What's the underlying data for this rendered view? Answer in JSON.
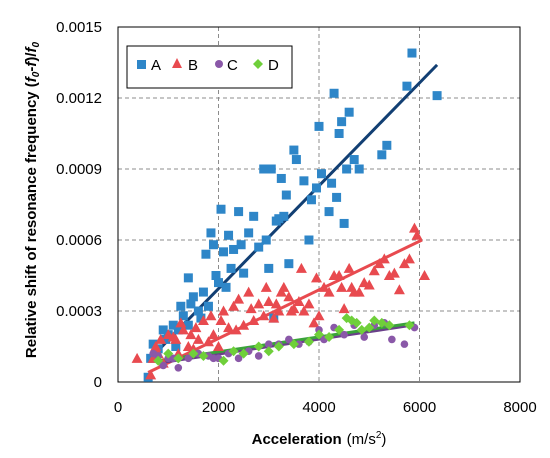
{
  "chart_data": {
    "type": "scatter",
    "xlabel_bold": "Acceleration",
    "xlabel_unit_prefix": "(m/s",
    "xlabel_unit_sup": "2",
    "xlabel_unit_suffix": ")",
    "ylabel_prefix": "Relative shift of resonance frequency (",
    "ylabel_f0a": "f",
    "ylabel_sub0a": "0",
    "ylabel_mid": "-",
    "ylabel_f": "f",
    "ylabel_slash": ")/",
    "ylabel_f0b": "f",
    "ylabel_sub0b": "0",
    "xlim": [
      0,
      8000
    ],
    "ylim": [
      0,
      0.0015
    ],
    "x_ticks": [
      "0",
      "2000",
      "4000",
      "6000",
      "8000"
    ],
    "y_ticks": [
      "0",
      "0.0003",
      "0.0006",
      "0.0009",
      "0.0012",
      "0.0015"
    ],
    "x_tick_values": [
      0,
      2000,
      4000,
      6000,
      8000
    ],
    "y_tick_values": [
      0,
      0.0003,
      0.0006,
      0.0009,
      0.0012,
      0.0015
    ],
    "grid": true,
    "legend_position": "top-left",
    "series": [
      {
        "name": "A",
        "marker": "square",
        "color": "#2e86c8",
        "fit": {
          "x": [
            600,
            6350
          ],
          "y": [
            9e-05,
            0.00134
          ],
          "color": "#123f73"
        },
        "points": [
          [
            600,
            2e-05
          ],
          [
            650,
            0.0001
          ],
          [
            700,
            0.00016
          ],
          [
            800,
            0.00014
          ],
          [
            900,
            0.00022
          ],
          [
            950,
            0.00018
          ],
          [
            1000,
            0.0002
          ],
          [
            1100,
            0.00024
          ],
          [
            1150,
            0.00015
          ],
          [
            1200,
            0.00022
          ],
          [
            1250,
            0.00032
          ],
          [
            1300,
            0.00028
          ],
          [
            1400,
            0.00044
          ],
          [
            1400,
            0.00024
          ],
          [
            1450,
            0.00033
          ],
          [
            1500,
            0.00036
          ],
          [
            1600,
            0.0003
          ],
          [
            1650,
            0.00027
          ],
          [
            1700,
            0.00038
          ],
          [
            1750,
            0.00054
          ],
          [
            1800,
            0.00032
          ],
          [
            1850,
            0.00063
          ],
          [
            1900,
            0.00058
          ],
          [
            1950,
            0.00045
          ],
          [
            2000,
            0.00042
          ],
          [
            2050,
            0.00073
          ],
          [
            2100,
            0.00055
          ],
          [
            2150,
            0.0004
          ],
          [
            2200,
            0.00062
          ],
          [
            2250,
            0.00048
          ],
          [
            2300,
            0.00056
          ],
          [
            2400,
            0.00072
          ],
          [
            2450,
            0.00058
          ],
          [
            2500,
            0.00046
          ],
          [
            2600,
            0.00063
          ],
          [
            2700,
            0.0007
          ],
          [
            2800,
            0.00057
          ],
          [
            2900,
            0.0009
          ],
          [
            2950,
            0.0006
          ],
          [
            3000,
            0.00048
          ],
          [
            3050,
            0.0009
          ],
          [
            3100,
            0.00027
          ],
          [
            3150,
            0.00068
          ],
          [
            3200,
            0.00069
          ],
          [
            3250,
            0.00086
          ],
          [
            3300,
            0.0007
          ],
          [
            3350,
            0.00079
          ],
          [
            3400,
            0.0005
          ],
          [
            3500,
            0.00098
          ],
          [
            3550,
            0.00094
          ],
          [
            3700,
            0.00085
          ],
          [
            3800,
            0.0006
          ],
          [
            3850,
            0.00077
          ],
          [
            3950,
            0.00082
          ],
          [
            4000,
            0.00108
          ],
          [
            4050,
            0.00088
          ],
          [
            4200,
            0.00072
          ],
          [
            4250,
            0.00084
          ],
          [
            4300,
            0.00122
          ],
          [
            4350,
            0.00078
          ],
          [
            4400,
            0.00105
          ],
          [
            4450,
            0.0011
          ],
          [
            4500,
            0.00067
          ],
          [
            4550,
            0.0009
          ],
          [
            4600,
            0.00114
          ],
          [
            4700,
            0.00094
          ],
          [
            4800,
            0.0009
          ],
          [
            5250,
            0.00096
          ],
          [
            5350,
            0.001
          ],
          [
            5750,
            0.00125
          ],
          [
            5850,
            0.00139
          ],
          [
            6350,
            0.00121
          ]
        ]
      },
      {
        "name": "B",
        "marker": "triangle",
        "color": "#e84a4f",
        "fit": {
          "x": [
            600,
            6050
          ],
          "y": [
            4e-05,
            0.0006
          ],
          "color": "#e84a4f"
        },
        "points": [
          [
            380,
            0.0001
          ],
          [
            650,
            3e-05
          ],
          [
            700,
            0.0001
          ],
          [
            750,
            0.00015
          ],
          [
            800,
            0.00012
          ],
          [
            850,
            0.00018
          ],
          [
            900,
            8e-05
          ],
          [
            1000,
            0.0002
          ],
          [
            1100,
            0.00019
          ],
          [
            1150,
            0.00018
          ],
          [
            1200,
            0.00012
          ],
          [
            1250,
            0.00025
          ],
          [
            1300,
            0.00022
          ],
          [
            1400,
            0.00015
          ],
          [
            1450,
            0.0002
          ],
          [
            1500,
            0.00014
          ],
          [
            1550,
            0.00023
          ],
          [
            1600,
            0.00018
          ],
          [
            1700,
            0.00026
          ],
          [
            1800,
            0.00017
          ],
          [
            1850,
            0.00028
          ],
          [
            1900,
            0.0002
          ],
          [
            2000,
            0.00015
          ],
          [
            2050,
            0.00026
          ],
          [
            2100,
            0.0003
          ],
          [
            2200,
            0.00023
          ],
          [
            2300,
            0.00032
          ],
          [
            2350,
            0.00022
          ],
          [
            2400,
            0.00035
          ],
          [
            2500,
            0.00024
          ],
          [
            2600,
            0.00038
          ],
          [
            2650,
            0.00031
          ],
          [
            2700,
            0.00026
          ],
          [
            2800,
            0.00033
          ],
          [
            2900,
            0.00028
          ],
          [
            2950,
            0.0004
          ],
          [
            3000,
            0.00034
          ],
          [
            3100,
            0.00027
          ],
          [
            3150,
            0.00033
          ],
          [
            3200,
            0.0003
          ],
          [
            3250,
            0.00038
          ],
          [
            3300,
            0.0004
          ],
          [
            3400,
            0.00036
          ],
          [
            3450,
            0.0003
          ],
          [
            3500,
            0.00031
          ],
          [
            3600,
            0.00034
          ],
          [
            3650,
            0.00048
          ],
          [
            3700,
            0.0003
          ],
          [
            3800,
            0.00033
          ],
          [
            3900,
            0.00025
          ],
          [
            3950,
            0.00044
          ],
          [
            4000,
            0.00028
          ],
          [
            4100,
            0.0004
          ],
          [
            4200,
            0.00038
          ],
          [
            4300,
            0.00045
          ],
          [
            4400,
            0.00045
          ],
          [
            4450,
            0.0004
          ],
          [
            4500,
            0.00031
          ],
          [
            4600,
            0.00048
          ],
          [
            4650,
            0.0004
          ],
          [
            4700,
            0.00038
          ],
          [
            4800,
            0.00038
          ],
          [
            4900,
            0.00042
          ],
          [
            5000,
            0.00041
          ],
          [
            5100,
            0.00047
          ],
          [
            5200,
            0.0005
          ],
          [
            5300,
            0.00052
          ],
          [
            5400,
            0.00045
          ],
          [
            5500,
            0.00046
          ],
          [
            5600,
            0.00039
          ],
          [
            5700,
            0.0005
          ],
          [
            5800,
            0.00052
          ],
          [
            5900,
            0.00065
          ],
          [
            5950,
            0.00062
          ],
          [
            6100,
            0.00045
          ]
        ]
      },
      {
        "name": "C",
        "marker": "circle",
        "color": "#8a58a8",
        "fit": {
          "x": [
            800,
            5850
          ],
          "y": [
            8e-05,
            0.00024
          ],
          "color": "#6a3f8a"
        },
        "points": [
          [
            700,
            0.00012
          ],
          [
            800,
            0.00011
          ],
          [
            900,
            7e-05
          ],
          [
            1000,
            0.0001
          ],
          [
            1100,
            0.0001
          ],
          [
            1200,
            6e-05
          ],
          [
            1400,
            0.0001
          ],
          [
            1600,
            0.00012
          ],
          [
            1800,
            0.00011
          ],
          [
            1900,
            0.0001
          ],
          [
            2000,
            0.0001
          ],
          [
            2200,
            0.00012
          ],
          [
            2400,
            0.0001
          ],
          [
            2600,
            0.00013
          ],
          [
            2800,
            0.00011
          ],
          [
            3000,
            0.00016
          ],
          [
            3200,
            0.00016
          ],
          [
            3400,
            0.00018
          ],
          [
            3600,
            0.00016
          ],
          [
            3800,
            0.00017
          ],
          [
            4000,
            0.00022
          ],
          [
            4100,
            0.00018
          ],
          [
            4300,
            0.00023
          ],
          [
            4500,
            0.0002
          ],
          [
            4700,
            0.00024
          ],
          [
            4900,
            0.00019
          ],
          [
            5100,
            0.00024
          ],
          [
            5300,
            0.00025
          ],
          [
            5450,
            0.00018
          ],
          [
            5700,
            0.00016
          ],
          [
            5900,
            0.00023
          ]
        ]
      },
      {
        "name": "D",
        "marker": "diamond",
        "color": "#6fcf3a",
        "fit": {
          "x": [
            800,
            5900
          ],
          "y": [
            9e-05,
            0.00025
          ],
          "color": "#3aa33a"
        },
        "points": [
          [
            800,
            9e-05
          ],
          [
            1000,
            0.00012
          ],
          [
            1200,
            0.0001
          ],
          [
            1500,
            0.00012
          ],
          [
            1700,
            0.00011
          ],
          [
            2100,
            9e-05
          ],
          [
            2300,
            0.00013
          ],
          [
            2500,
            0.00012
          ],
          [
            2800,
            0.00015
          ],
          [
            3000,
            0.00013
          ],
          [
            3200,
            0.00015
          ],
          [
            3500,
            0.00016
          ],
          [
            3800,
            0.00017
          ],
          [
            4000,
            0.0002
          ],
          [
            4200,
            0.00019
          ],
          [
            4400,
            0.00022
          ],
          [
            4550,
            0.00027
          ],
          [
            4650,
            0.00026
          ],
          [
            4750,
            0.00025
          ],
          [
            4850,
            0.00022
          ],
          [
            5000,
            0.00023
          ],
          [
            5100,
            0.00026
          ],
          [
            5250,
            0.00025
          ],
          [
            5400,
            0.00024
          ],
          [
            5800,
            0.00024
          ]
        ]
      }
    ]
  }
}
